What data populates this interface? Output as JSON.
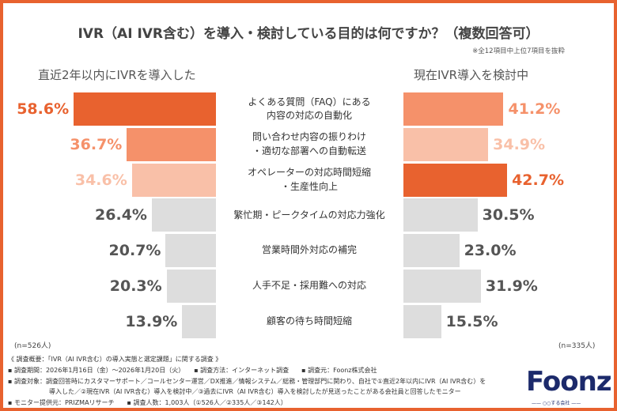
{
  "title": "IVR（AI IVR含む）を導入・検討している目的は何ですか？（複数回答可）",
  "note": "※全12項目中上位7項目を抜粋",
  "colors": {
    "dark": "#e8622f",
    "mid": "#f5916a",
    "light": "#f9c0a8",
    "gray": "#dddddd",
    "text": "#555555"
  },
  "chart_data": {
    "type": "bar",
    "categories": [
      "よくある質問（FAQ）にある\n内容の対応の自動化",
      "問い合わせ内容の振りわけ\n・適切な部署への自動転送",
      "オペレーターの対応時間短縮\n・生産性向上",
      "繁忙期・ピークタイムの対応力強化",
      "営業時間外対応の補完",
      "人手不足・採用難への対応",
      "顧客の待ち時間短縮"
    ],
    "series": [
      {
        "name": "直近2年以内にIVRを導入した",
        "values": [
          58.6,
          36.7,
          34.6,
          26.4,
          20.7,
          20.3,
          13.9
        ],
        "labels": [
          "58.6%",
          "36.7%",
          "34.6%",
          "26.4%",
          "20.7%",
          "20.3%",
          "13.9%"
        ],
        "colors": [
          "dark",
          "mid",
          "light",
          "gray",
          "gray",
          "gray",
          "gray"
        ],
        "n": "(n=526人)"
      },
      {
        "name": "現在IVR導入を検討中",
        "values": [
          41.2,
          34.9,
          42.7,
          30.5,
          23.0,
          31.9,
          15.5
        ],
        "labels": [
          "41.2%",
          "34.9%",
          "42.7%",
          "30.5%",
          "23.0%",
          "31.9%",
          "15.5%"
        ],
        "colors": [
          "mid",
          "light",
          "dark",
          "gray",
          "gray",
          "gray",
          "gray"
        ],
        "n": "(n=335人)"
      }
    ]
  },
  "footer": {
    "line1": "《 調査概要：「IVR（AI IVR含む）の導入実態と選定課題」に関する調査 》",
    "line2": "▪ 調査期間：2026年1月16日（金）～2026年1月20日（火）　　▪ 調査方法：インターネット調査　　▪ 調査元：Foonz株式会社",
    "line3": "▪ 調査対象：調査回答時にカスタマーサポート／コールセンター運営／DX推進／情報システム／総務・管理部門に関わり、自社で①直近2年以内にIVR（AI IVR含む）を",
    "line4": "導入した／②現在IVR（AI IVR含む）導入を検討中／③過去にIVR（AI IVR含む）導入を検討したが見送ったことがある会社員と回答したモニター",
    "line5": "▪ モニター提供元：PRIZMAリサーチ　　▪ 調査人数：1,003人（①526人／②335人／③142人）"
  },
  "logo": {
    "text": "Foonz",
    "tagline": "—— ○○する会社 ——"
  }
}
